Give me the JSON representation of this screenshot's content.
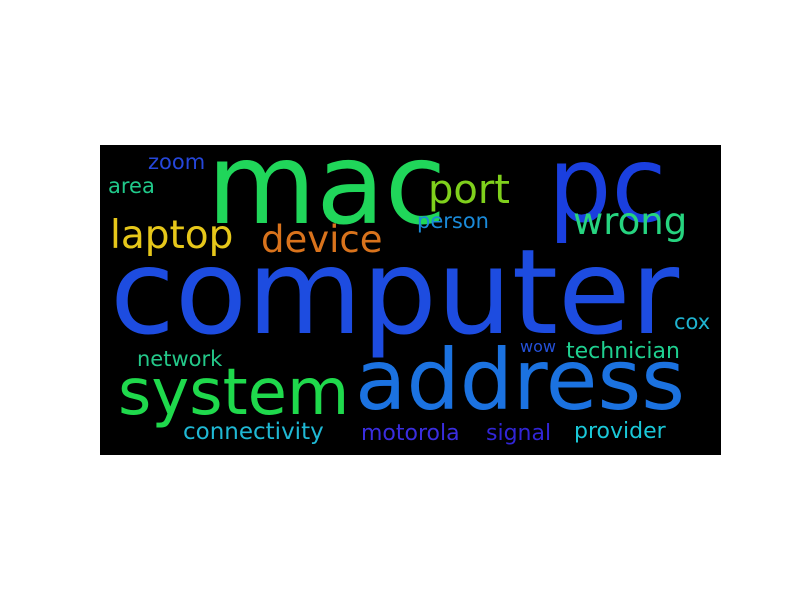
{
  "background_color": "#000000",
  "page_background": "#ffffff",
  "words": [
    {
      "text": "computer",
      "color": "#1d4ce0"
    },
    {
      "text": "mac",
      "color": "#20d65a"
    },
    {
      "text": "pc",
      "color": "#1a3fdf"
    },
    {
      "text": "address",
      "color": "#1b72e0"
    },
    {
      "text": "system",
      "color": "#1fd94c"
    },
    {
      "text": "port",
      "color": "#7fd01c"
    },
    {
      "text": "laptop",
      "color": "#e6c71a"
    },
    {
      "text": "device",
      "color": "#d9731c"
    },
    {
      "text": "wrong",
      "color": "#26d47f"
    },
    {
      "text": "zoom",
      "color": "#2546d9"
    },
    {
      "text": "area",
      "color": "#20c98a"
    },
    {
      "text": "person",
      "color": "#1a8ad9"
    },
    {
      "text": "cox",
      "color": "#1fb3d0"
    },
    {
      "text": "wow",
      "color": "#2450d8"
    },
    {
      "text": "network",
      "color": "#24c98a"
    },
    {
      "text": "technician",
      "color": "#1fd090"
    },
    {
      "text": "connectivity",
      "color": "#1fb8d4"
    },
    {
      "text": "motorola",
      "color": "#3a2de0"
    },
    {
      "text": "signal",
      "color": "#3125d6"
    },
    {
      "text": "provider",
      "color": "#1ac8d8"
    }
  ]
}
